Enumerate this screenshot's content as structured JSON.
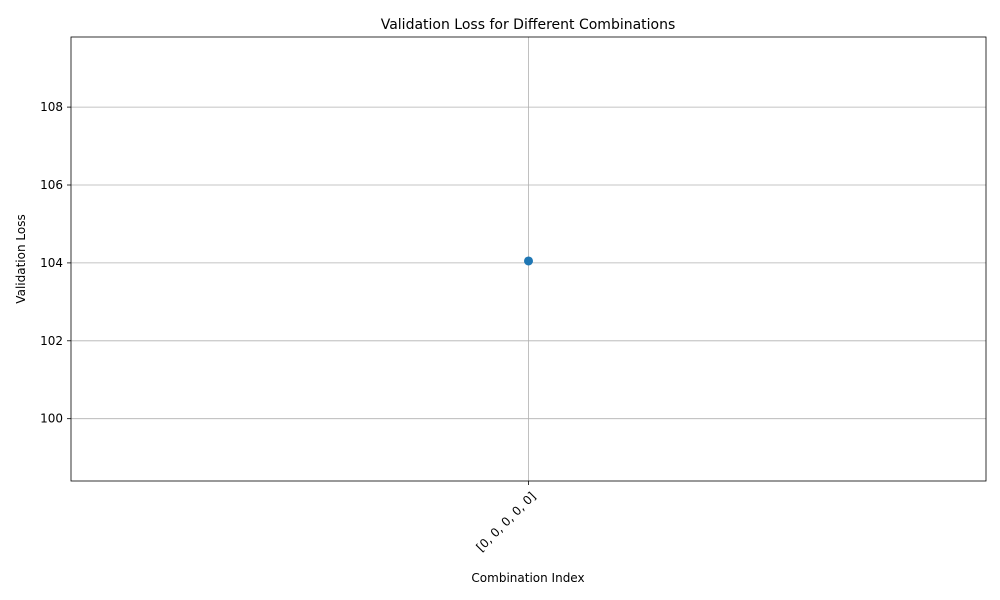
{
  "chart_data": {
    "type": "line",
    "title": "Validation Loss for Different Combinations",
    "xlabel": "Combination Index",
    "ylabel": "Validation Loss",
    "categories": [
      "[0, 0, 0, 0, 0]"
    ],
    "series": [
      {
        "values": [
          104.05
        ],
        "color": "#1f77b4"
      }
    ],
    "ylim": [
      98.4,
      109.8
    ],
    "yticks": [
      100,
      102,
      104,
      106,
      108
    ],
    "grid": true,
    "x_tick_rotation": 45
  }
}
